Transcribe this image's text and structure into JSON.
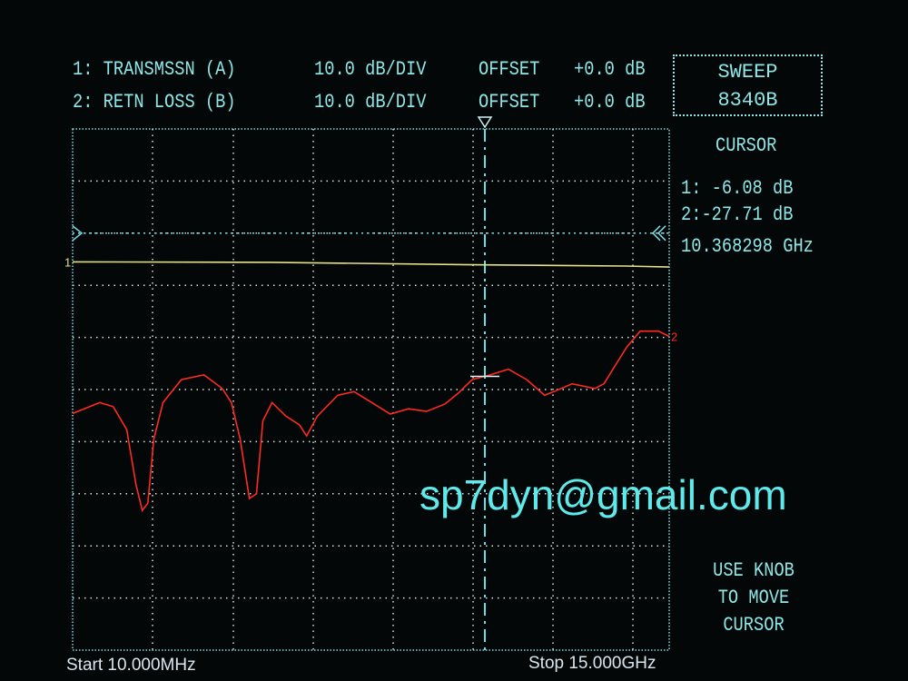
{
  "header": {
    "ch1": {
      "label": "1: TRANSMSSN (A)",
      "scale": "10.0 dB/DIV",
      "offset_label": "OFFSET",
      "offset": "+0.0 dB"
    },
    "ch2": {
      "label": "2: RETN LOSS (B)",
      "scale": "10.0 dB/DIV",
      "offset_label": "OFFSET",
      "offset": "+0.0 dB"
    }
  },
  "sweep_box": {
    "line1": "SWEEP",
    "line2": "8340B"
  },
  "cursor": {
    "title": "CURSOR",
    "ch1": "1: -6.08 dB",
    "ch2": "2:-27.71 dB",
    "freq": "10.368298 GHz"
  },
  "instructions": {
    "line1": "USE KNOB",
    "line2": "TO MOVE",
    "line3": "CURSOR"
  },
  "watermark": "sp7dyn@gmail.com",
  "footer": {
    "start": "Start 10.000MHz",
    "stop": "Stop 15.000GHz"
  },
  "colors": {
    "text": "#8fe6e6",
    "grid": "#d8e4e4",
    "trace1": "#e6e08a",
    "trace2": "#ff2a20",
    "watermark": "#5fe9ea"
  },
  "chart_data": {
    "type": "line",
    "xlabel": "",
    "ylabel": "",
    "xlim": [
      0.01,
      15.0
    ],
    "ylim": [
      -80,
      20
    ],
    "reference_level_db": 0,
    "grid": true,
    "cursor_ghz": 10.368298,
    "series": [
      {
        "name": "1",
        "x": [
          0.01,
          5.0,
          10.37,
          13.9,
          15.0
        ],
        "y": [
          -5.5,
          -5.6,
          -6.08,
          -6.3,
          -6.5
        ]
      },
      {
        "name": "2",
        "x": [
          0.01,
          0.69,
          1.03,
          1.37,
          1.6,
          1.76,
          1.9,
          2.05,
          2.28,
          2.74,
          3.31,
          3.77,
          4.0,
          4.22,
          4.45,
          4.63,
          4.79,
          5.02,
          5.37,
          5.71,
          5.89,
          6.16,
          6.67,
          7.08,
          7.53,
          7.99,
          8.45,
          8.9,
          9.36,
          9.7,
          10.05,
          10.5,
          10.96,
          11.42,
          11.87,
          12.1,
          12.56,
          13.13,
          13.36,
          13.93,
          14.27,
          14.73,
          15.0
        ],
        "y": [
          -34.6,
          -32.5,
          -33.3,
          -37.7,
          -48.2,
          -53.2,
          -51.8,
          -39.5,
          -32.5,
          -28.1,
          -27.2,
          -29.8,
          -32.5,
          -39.5,
          -50.9,
          -50.0,
          -36.0,
          -32.5,
          -35.1,
          -36.8,
          -38.9,
          -35.1,
          -31.1,
          -30.4,
          -32.5,
          -34.7,
          -33.7,
          -34.2,
          -32.8,
          -30.7,
          -28.1,
          -27.2,
          -26.1,
          -28.1,
          -31.1,
          -30.4,
          -28.9,
          -29.8,
          -28.9,
          -21.9,
          -18.8,
          -18.8,
          -19.8
        ]
      }
    ]
  }
}
